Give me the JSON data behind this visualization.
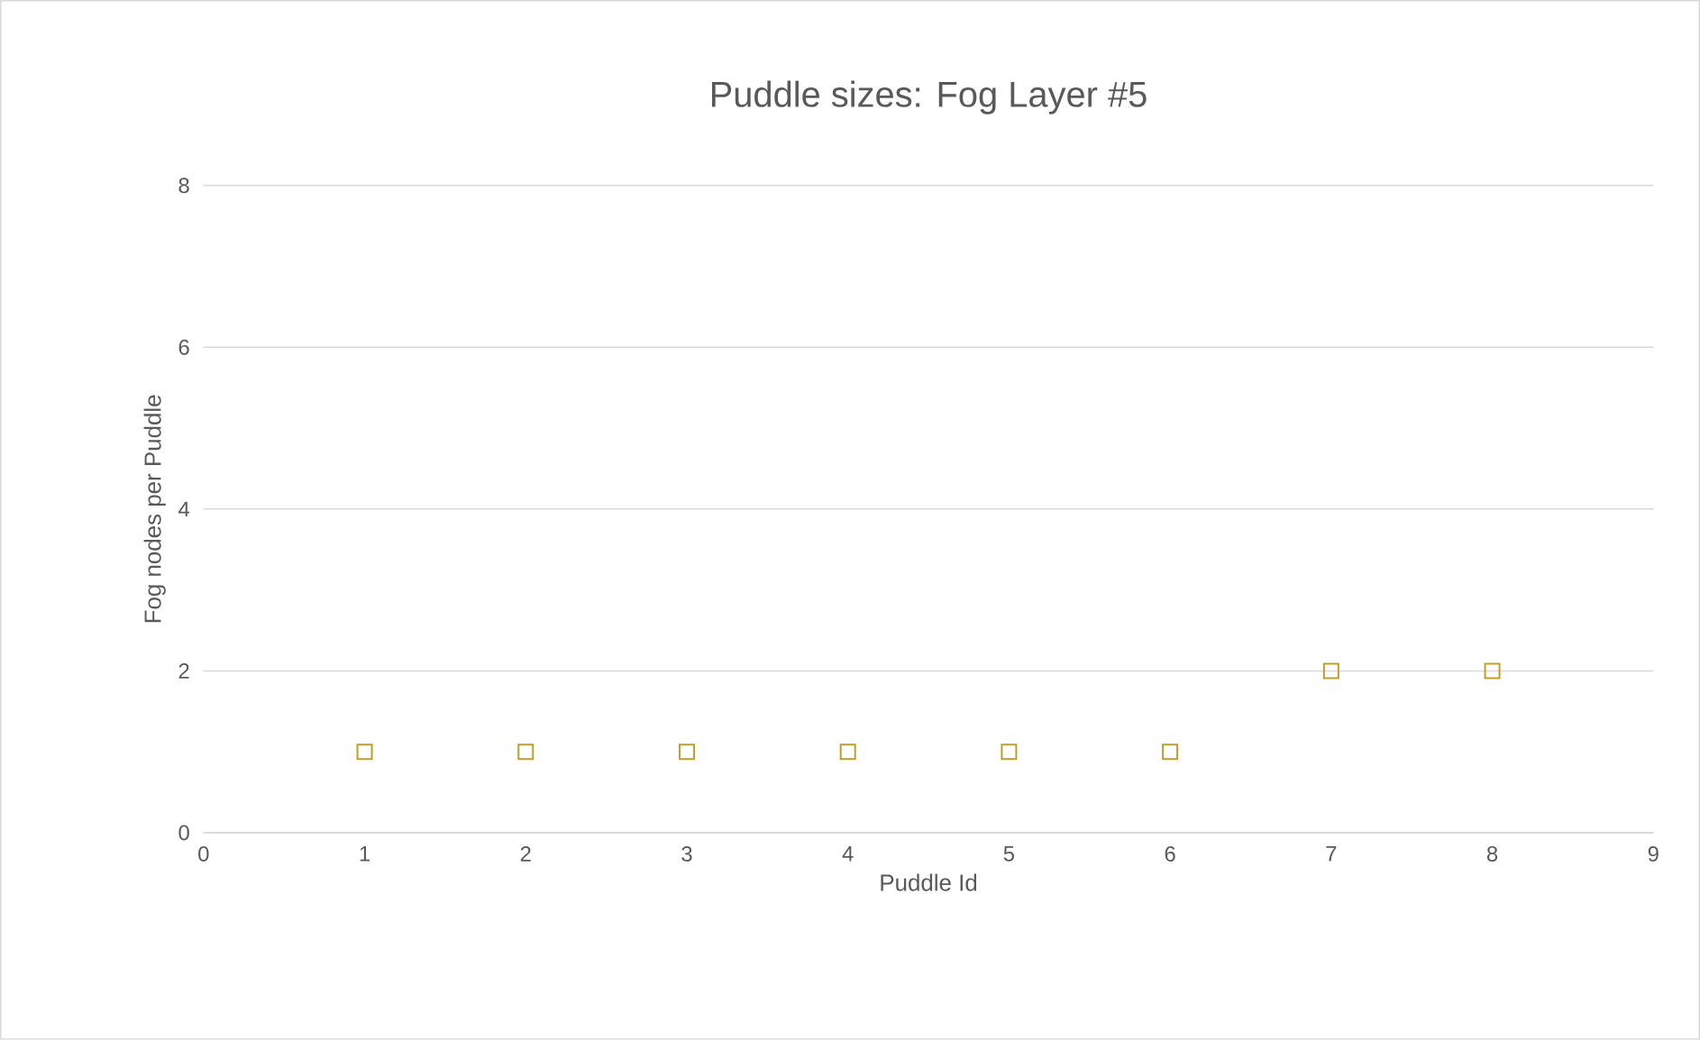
{
  "chart_data": {
    "type": "scatter",
    "title": "Puddle sizes: Fog Layer #5",
    "xlabel": "Puddle Id",
    "ylabel": "Fog nodes per Puddle",
    "x": [
      1,
      2,
      3,
      4,
      5,
      6,
      7,
      8
    ],
    "series": [
      {
        "color": "#bf9f2a",
        "values": [
          1,
          1,
          1,
          1,
          1,
          1,
          2,
          2
        ]
      }
    ],
    "xlim": [
      0,
      9
    ],
    "xticks": [
      0,
      1,
      2,
      3,
      4,
      5,
      6,
      7,
      8,
      9
    ],
    "ylim": [
      0,
      8
    ],
    "yticks": [
      0,
      2,
      4,
      6,
      8
    ],
    "grid": "y",
    "marker": "square",
    "legend": false
  }
}
